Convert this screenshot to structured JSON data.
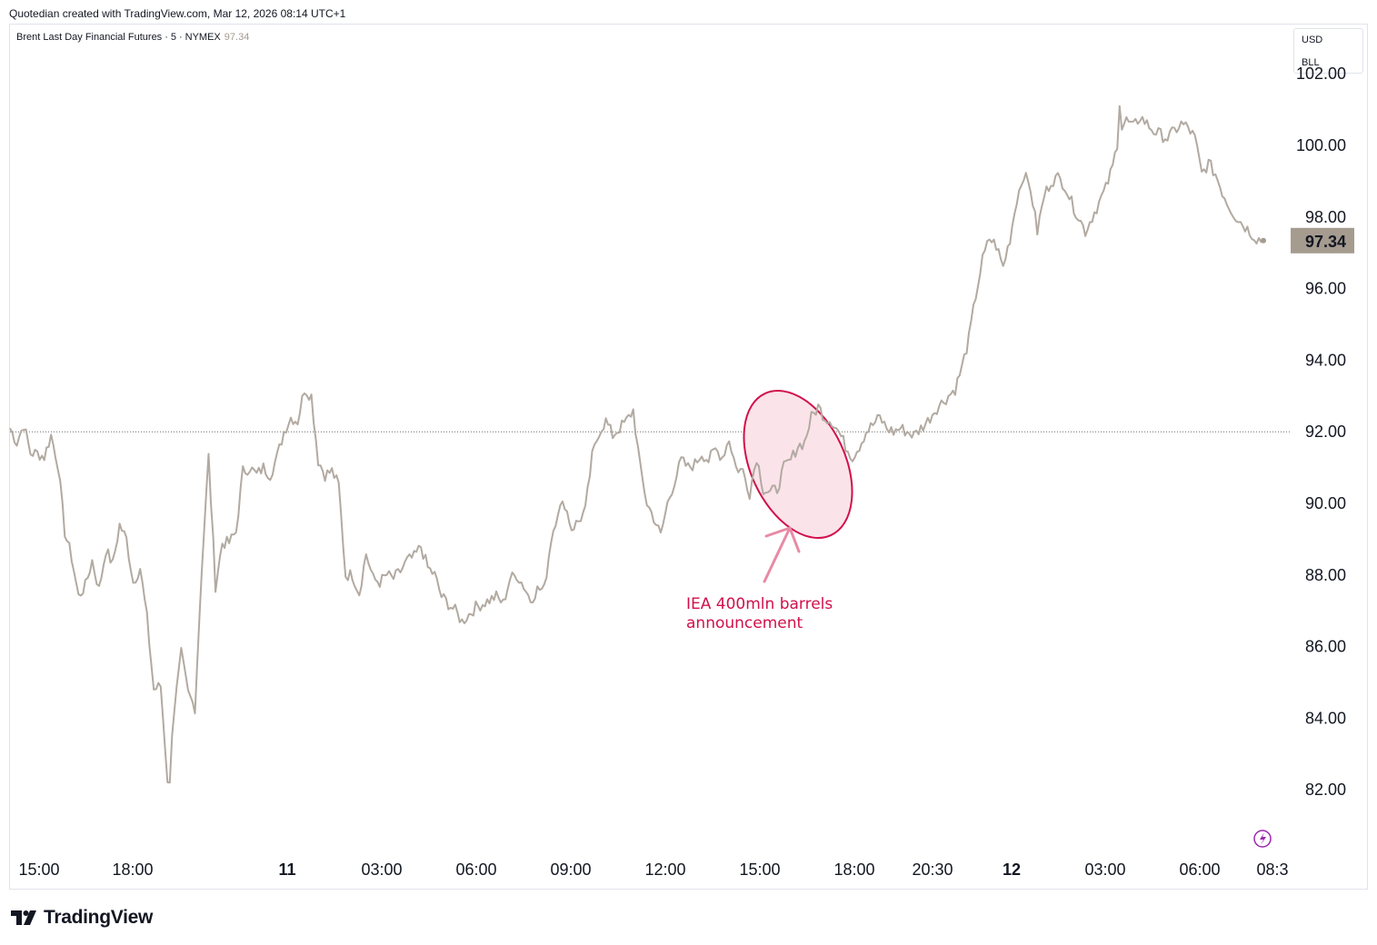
{
  "caption": "Quotedian created with TradingView.com, Mar 12, 2026 08:14 UTC+1",
  "legend": {
    "symbol": "Brent Last Day Financial Futures",
    "interval": "5",
    "exchange": "NYMEX",
    "last": "97.34"
  },
  "currency_box": {
    "currency": "USD",
    "unit": "BLL"
  },
  "brand": {
    "name": "TradingView",
    "logo_icon": "tradingview-logo-icon"
  },
  "colors": {
    "line": "#b2aaa1",
    "price_label_bg": "#a59b8f",
    "annotation": "#d1104a",
    "annotation_fill": "#fbe3ea",
    "arrow": "#e88aa6"
  },
  "chart_data": {
    "type": "line",
    "title": "",
    "xlabel": "",
    "ylabel": "",
    "ylim": [
      80.8,
      103.0
    ],
    "y_ticks": [
      "82.00",
      "84.00",
      "86.00",
      "88.00",
      "90.00",
      "92.00",
      "94.00",
      "96.00",
      "98.00",
      "100.00",
      "102.00"
    ],
    "x_ticks": [
      {
        "label": "15:00",
        "bold": false
      },
      {
        "label": "18:00",
        "bold": false
      },
      {
        "label": "11",
        "bold": true
      },
      {
        "label": "03:00",
        "bold": false
      },
      {
        "label": "06:00",
        "bold": false
      },
      {
        "label": "09:00",
        "bold": false
      },
      {
        "label": "12:00",
        "bold": false
      },
      {
        "label": "15:00",
        "bold": false
      },
      {
        "label": "18:00",
        "bold": false
      },
      {
        "label": "20:30",
        "bold": false
      },
      {
        "label": "12",
        "bold": true
      },
      {
        "label": "03:00",
        "bold": false
      },
      {
        "label": "06:00",
        "bold": false
      },
      {
        "label": "08:3",
        "bold": false
      }
    ],
    "reference_price": 92.0,
    "last_price": "97.34",
    "series": [
      {
        "values": [
          92.1,
          91.7,
          92.2,
          91.4,
          91.4,
          91.3,
          91.9,
          91.1,
          89.2,
          88.5,
          87.4,
          87.7,
          88.4,
          87.6,
          88.7,
          88.3,
          89.4,
          89.0,
          87.8,
          88.2,
          86.8,
          84.8,
          84.9,
          82.3,
          84.3,
          85.8,
          84.7,
          84.3,
          88.2,
          91.3,
          87.7,
          88.9,
          88.9,
          89.2,
          90.9,
          91.0,
          90.8,
          91.0,
          90.8,
          91.3,
          92.0,
          92.4,
          92.3,
          93.2,
          93.0,
          91.2,
          90.8,
          90.9,
          90.5,
          88.0,
          88.0,
          87.5,
          88.6,
          87.9,
          87.8,
          88.0,
          87.9,
          88.1,
          88.4,
          88.5,
          88.8,
          88.2,
          88.0,
          87.4,
          87.2,
          87.0,
          86.7,
          86.9,
          87.1,
          87.2,
          87.3,
          87.4,
          87.2,
          87.9,
          88.0,
          87.7,
          87.3,
          87.6,
          87.6,
          89.0,
          89.8,
          90.0,
          89.3,
          89.5,
          89.8,
          91.3,
          92.0,
          92.3,
          91.9,
          92.1,
          92.3,
          92.6,
          91.0,
          90.0,
          89.6,
          89.1,
          90.0,
          90.6,
          91.2,
          91.0,
          91.1,
          91.4,
          91.2,
          91.5,
          91.3,
          91.8,
          91.0,
          90.9,
          90.3,
          91.3,
          90.4,
          90.3,
          90.4,
          91.0,
          91.2,
          91.6,
          91.7,
          92.4,
          92.7,
          92.4,
          92.3,
          92.0,
          91.6,
          91.3,
          91.6,
          92.0,
          92.2,
          92.4,
          92.1,
          92.0,
          92.1,
          92.0,
          91.9,
          92.1,
          92.3,
          92.6,
          92.8,
          93.0,
          93.2,
          93.8,
          94.6,
          95.8,
          96.8,
          97.4,
          97.2,
          96.6,
          97.4,
          98.5,
          99.2,
          98.8,
          97.6,
          98.6,
          99.0,
          99.1,
          98.9,
          98.4,
          98.0,
          97.6,
          98.0,
          98.4,
          98.8,
          99.4,
          100.4,
          100.7,
          100.5,
          100.8,
          100.6,
          100.4,
          100.3,
          100.2,
          100.4,
          100.6,
          100.5,
          100.2,
          99.2,
          99.5,
          99.2,
          98.7,
          98.3,
          98.0,
          97.8,
          97.6,
          97.4,
          97.34
        ],
        "intraday_extremes": {
          "low": 82.2,
          "high": 101.1
        }
      }
    ],
    "annotations": [
      {
        "text_line1": "IEA 400mln barrels",
        "text_line2": "announcement"
      }
    ]
  }
}
